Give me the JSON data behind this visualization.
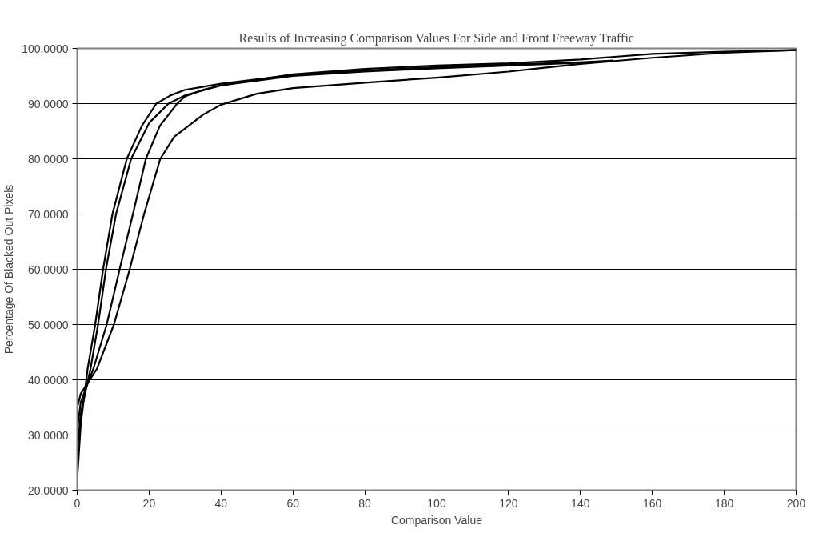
{
  "chart_data": {
    "type": "line",
    "title": "Results of Increasing Comparison Values For Side and Front Freeway Traffic",
    "xlabel": "Comparison Value",
    "ylabel": "Percentage Of Blacked Out Pixels",
    "series": [
      {
        "color": "#000000",
        "x": [
          0,
          1,
          2.9,
          5,
          7.2,
          9.8,
          13.8,
          18,
          22,
          26,
          30,
          40,
          60,
          80,
          100,
          120,
          140,
          149
        ],
        "values": [
          22,
          32,
          42,
          50,
          60,
          70,
          80,
          86,
          90,
          91.5,
          92.5,
          93.6,
          95.2,
          96,
          96.6,
          97.1,
          97.5,
          97.8
        ]
      },
      {
        "color": "#000000",
        "x": [
          0,
          1,
          3.7,
          5.8,
          8,
          10.8,
          15,
          20,
          25.4,
          30,
          40,
          60,
          80,
          100,
          120,
          140,
          149
        ],
        "values": [
          27,
          34,
          42,
          50,
          60,
          70,
          80,
          86.5,
          90,
          91.5,
          93.3,
          95,
          95.8,
          96.4,
          96.9,
          97.4,
          97.7
        ]
      },
      {
        "color": "#000000",
        "x": [
          0,
          1,
          4.5,
          8.2,
          11.8,
          15.5,
          19.1,
          23,
          27.8,
          30,
          35,
          40,
          60,
          80,
          100,
          120,
          140,
          160,
          180,
          200
        ],
        "values": [
          31,
          36,
          42,
          50,
          60,
          70,
          80,
          86,
          90,
          91.3,
          92.5,
          93.3,
          95.3,
          96.3,
          96.9,
          97.3,
          98,
          99,
          99.4,
          99.7
        ]
      },
      {
        "color": "#000000",
        "x": [
          0,
          1,
          5.5,
          10.2,
          14.6,
          18.6,
          23.1,
          27,
          30,
          35,
          40,
          50,
          60,
          80,
          100,
          120,
          130,
          140,
          160,
          180,
          200
        ],
        "values": [
          35,
          37.5,
          42,
          50,
          60,
          70,
          80,
          84,
          85.5,
          88,
          89.8,
          91.8,
          92.8,
          93.8,
          94.7,
          95.8,
          96.5,
          97.2,
          98.3,
          99.2,
          99.7
        ]
      }
    ],
    "xlim": [
      0,
      200
    ],
    "xticks": [
      0,
      20,
      40,
      60,
      80,
      100,
      120,
      140,
      160,
      180,
      200
    ],
    "ylim": [
      20,
      100
    ],
    "yticks": [
      {
        "value": 20,
        "label": "20.0000"
      },
      {
        "value": 30,
        "label": "30.0000"
      },
      {
        "value": 40,
        "label": "40.0000"
      },
      {
        "value": 50,
        "label": "50.0000"
      },
      {
        "value": 60,
        "label": "60.0000"
      },
      {
        "value": 70,
        "label": "70.0000"
      },
      {
        "value": 80,
        "label": "80.0000"
      },
      {
        "value": 90,
        "label": "90.0000"
      },
      {
        "value": 100,
        "label": "100.0000"
      }
    ],
    "grid": "y",
    "marker": "none",
    "line_style": "solid"
  }
}
